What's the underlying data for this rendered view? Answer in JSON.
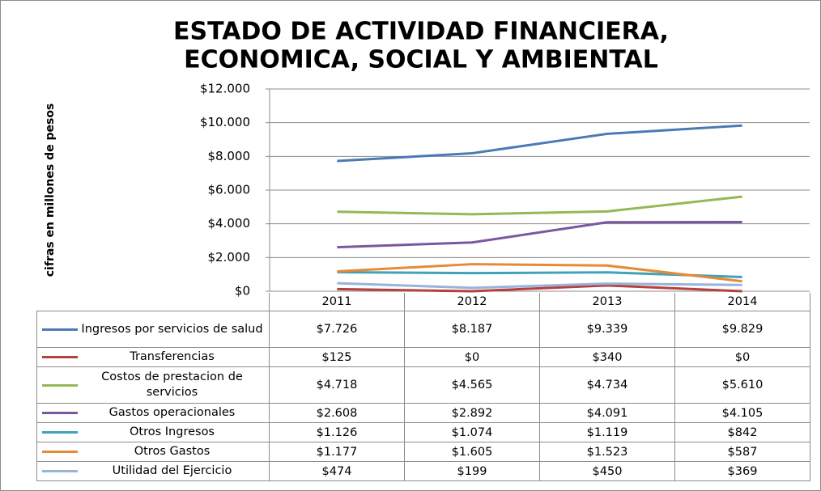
{
  "chart_data": {
    "type": "line",
    "title": [
      "ESTADO DE ACTIVIDAD FINANCIERA,",
      "ECONOMICA, SOCIAL Y AMBIENTAL"
    ],
    "y_axis_label": "cifras en millones de pesos",
    "categories": [
      "2011",
      "2012",
      "2013",
      "2014"
    ],
    "ylim": [
      0,
      12000
    ],
    "yticks": [
      {
        "value": 0,
        "label": "$0"
      },
      {
        "value": 2000,
        "label": "$2.000"
      },
      {
        "value": 4000,
        "label": "$4.000"
      },
      {
        "value": 6000,
        "label": "$6.000"
      },
      {
        "value": 8000,
        "label": "$8.000"
      },
      {
        "value": 10000,
        "label": "$10.000"
      },
      {
        "value": 12000,
        "label": "$12.000"
      }
    ],
    "grid": true,
    "series": [
      {
        "name": "Ingresos por servicios de salud",
        "color": "#4a7ab5",
        "values": [
          7726,
          8187,
          9339,
          9829
        ],
        "value_labels": [
          "$7.726",
          "$8.187",
          "$9.339",
          "$9.829"
        ]
      },
      {
        "name": "Transferencias",
        "color": "#b5403c",
        "values": [
          125,
          0,
          340,
          0
        ],
        "value_labels": [
          "$125",
          "$0",
          "$340",
          "$0"
        ]
      },
      {
        "name": "Costos de prestacion de servicios",
        "color": "#93b954",
        "values": [
          4718,
          4565,
          4734,
          5610
        ],
        "value_labels": [
          "$4.718",
          "$4.565",
          "$4.734",
          "$5.610"
        ]
      },
      {
        "name": "Gastos operacionales",
        "color": "#7a58a0",
        "values": [
          2608,
          2892,
          4091,
          4105
        ],
        "value_labels": [
          "$2.608",
          "$2.892",
          "$4.091",
          "$4.105"
        ]
      },
      {
        "name": "Otros Ingresos",
        "color": "#3fa2b9",
        "values": [
          1126,
          1074,
          1119,
          842
        ],
        "value_labels": [
          "$1.126",
          "$1.074",
          "$1.119",
          "$842"
        ]
      },
      {
        "name": "Otros Gastos",
        "color": "#e68a35",
        "values": [
          1177,
          1605,
          1523,
          587
        ],
        "value_labels": [
          "$1.177",
          "$1.605",
          "$1.523",
          "$587"
        ]
      },
      {
        "name": "Utilidad del Ejercicio",
        "color": "#9ab3da",
        "values": [
          474,
          199,
          450,
          369
        ],
        "value_labels": [
          "$474",
          "$199",
          "$450",
          "$369"
        ]
      }
    ]
  }
}
